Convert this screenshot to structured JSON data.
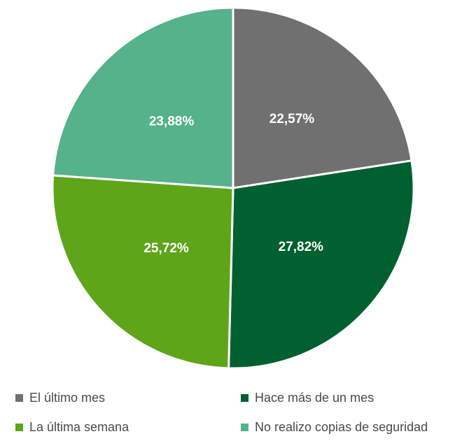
{
  "chart_data": {
    "type": "pie",
    "title": "",
    "legend_position": "bottom",
    "slices": [
      {
        "name": "El último mes",
        "value": 22.57,
        "label": "22,57%",
        "color": "#707070"
      },
      {
        "name": "Hace más de un mes",
        "value": 27.82,
        "label": "27,82%",
        "color": "#00602f"
      },
      {
        "name": "La última semana",
        "value": 25.72,
        "label": "25,72%",
        "color": "#5ea51a"
      },
      {
        "name": "No realizo copias de seguridad",
        "value": 23.88,
        "label": "23,88%",
        "color": "#55b28a"
      }
    ]
  }
}
